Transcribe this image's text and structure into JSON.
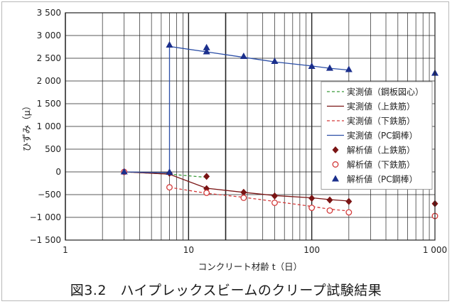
{
  "caption": "図3.2　ハイプレックスビームのクリープ試験結果",
  "colors": {
    "green": "#3a9a3a",
    "darkred": "#7a1414",
    "red": "#d33a3a",
    "blue": "#2b4ea6",
    "navy": "#1b2f8c",
    "grid": "#222222"
  },
  "chart_data": {
    "type": "scatter",
    "title": "",
    "xlabel": "コンクリート材齢 t（日）",
    "ylabel": "ひずみ（μ）",
    "xscale": "log",
    "xlim": [
      1,
      1000
    ],
    "ylim": [
      -1500,
      3500
    ],
    "grid": true,
    "legend_position": "right",
    "y_ticks": [
      {
        "v": 3500,
        "label": "3 500"
      },
      {
        "v": 3000,
        "label": "3 000"
      },
      {
        "v": 2500,
        "label": "2 500"
      },
      {
        "v": 2000,
        "label": "2 000"
      },
      {
        "v": 1500,
        "label": "1 500"
      },
      {
        "v": 1000,
        "label": "1 000"
      },
      {
        "v": 500,
        "label": "500"
      },
      {
        "v": 0,
        "label": "0"
      },
      {
        "v": -500,
        "label": "−500"
      },
      {
        "v": -1000,
        "label": "−1 000"
      },
      {
        "v": -1500,
        "label": "−1 500"
      }
    ],
    "x_ticks": [
      {
        "v": 1,
        "label": "1"
      },
      {
        "v": 10,
        "label": "10"
      },
      {
        "v": 100,
        "label": "100"
      },
      {
        "v": 1000,
        "label": "1 000"
      }
    ],
    "series": [
      {
        "name": "実測値（鋼板図心）",
        "style": "dashed-line",
        "color": "#3a9a3a",
        "x": [
          3,
          7,
          14
        ],
        "y": [
          0,
          -50,
          -120
        ]
      },
      {
        "name": "実測値（上鉄筋）",
        "style": "solid-line",
        "color": "#7a1414",
        "x": [
          3,
          7,
          7.1,
          14,
          28,
          50,
          100,
          140,
          200
        ],
        "y": [
          0,
          -50,
          -60,
          -360,
          -450,
          -520,
          -570,
          -610,
          -640
        ]
      },
      {
        "name": "実測値（下鉄筋）",
        "style": "dashed-line",
        "color": "#d33a3a",
        "x": [
          7,
          14,
          28,
          50,
          100,
          140,
          200
        ],
        "y": [
          -340,
          -470,
          -560,
          -650,
          -760,
          -820,
          -860
        ]
      },
      {
        "name": "実測値（PC鋼棒）",
        "style": "solid-line",
        "color": "#2b4ea6",
        "x": [
          3,
          7,
          7,
          14,
          28,
          50,
          100,
          140,
          200
        ],
        "y": [
          0,
          -20,
          2760,
          2640,
          2520,
          2420,
          2330,
          2280,
          2240
        ]
      },
      {
        "name": "解析値（上鉄筋）",
        "style": "marker-diamond",
        "color": "#7a1414",
        "x": [
          3,
          7,
          14,
          14,
          28,
          50,
          100,
          140,
          200,
          1000
        ],
        "y": [
          0,
          -30,
          -100,
          -370,
          -450,
          -530,
          -580,
          -620,
          -650,
          -700
        ]
      },
      {
        "name": "解析値（下鉄筋）",
        "style": "marker-circle",
        "color": "#d33a3a",
        "x": [
          3,
          7,
          14,
          28,
          50,
          100,
          140,
          200,
          1000
        ],
        "y": [
          0,
          -340,
          -460,
          -570,
          -680,
          -790,
          -850,
          -890,
          -970
        ]
      },
      {
        "name": "解析値（PC鋼棒）",
        "style": "marker-triangle",
        "color": "#1b2f8c",
        "x": [
          3,
          7,
          7,
          14,
          14,
          28,
          50,
          100,
          140,
          200,
          1000
        ],
        "y": [
          0,
          -10,
          2790,
          2730,
          2640,
          2540,
          2430,
          2320,
          2280,
          2250,
          2170
        ]
      }
    ]
  }
}
